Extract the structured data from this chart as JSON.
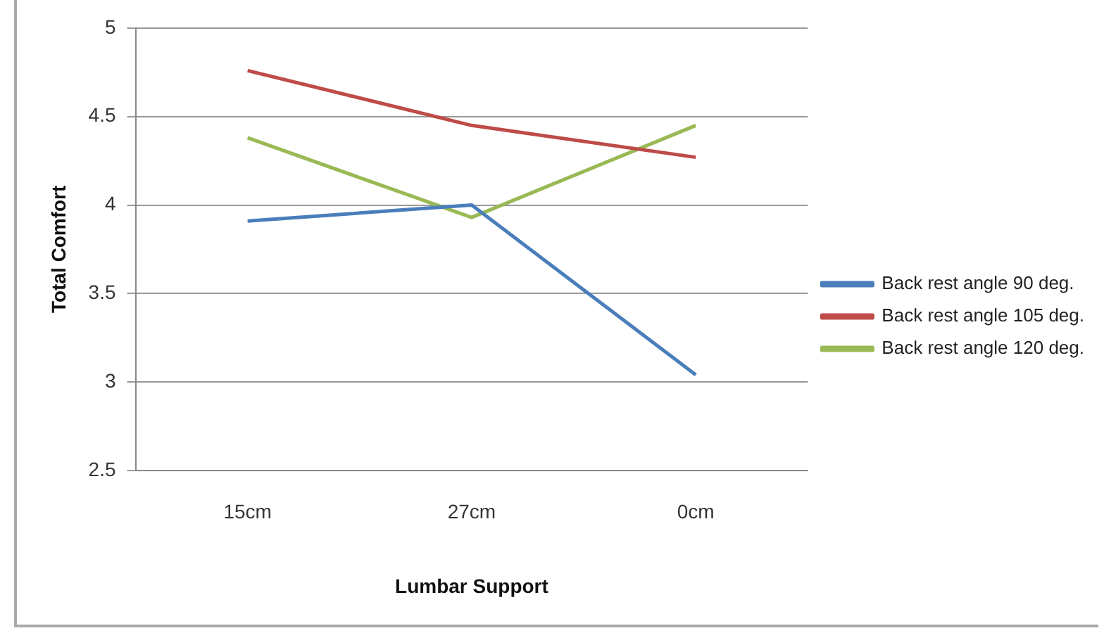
{
  "chart_data": {
    "type": "line",
    "xlabel": "Lumbar Support",
    "ylabel": "Total Comfort",
    "categories": [
      "15cm",
      "27cm",
      "0cm"
    ],
    "series": [
      {
        "name": "Back rest angle 90 deg.",
        "color": "#4a7ebb",
        "values": [
          3.91,
          4.0,
          3.04
        ]
      },
      {
        "name": "Back rest angle 105 deg.",
        "color": "#be4b48",
        "values": [
          4.76,
          4.45,
          4.27
        ]
      },
      {
        "name": "Back rest angle 120 deg.",
        "color": "#98b954",
        "values": [
          4.38,
          3.93,
          4.45
        ]
      }
    ],
    "ylim": [
      2.5,
      5
    ],
    "yticks": [
      2.5,
      3,
      3.5,
      4,
      4.5,
      5
    ],
    "grid": "y",
    "legend": "right",
    "marker": "none"
  }
}
